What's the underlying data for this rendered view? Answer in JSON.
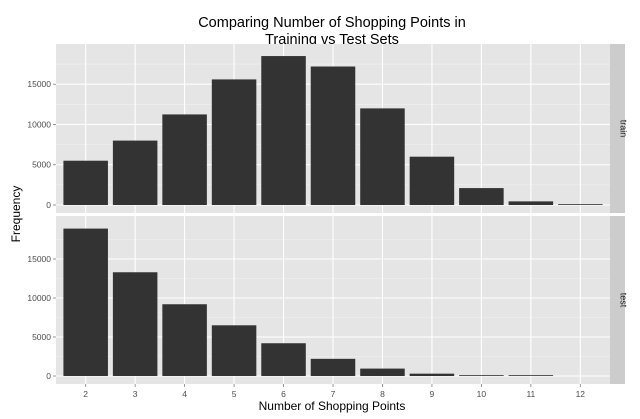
{
  "chart_data": {
    "type": "bar",
    "title_line1": "Comparing Number of Shopping Points in",
    "title_line2": "Training vs Test Sets",
    "xlabel": "Number of Shopping Points",
    "ylabel": "Frequency",
    "categories": [
      "2",
      "3",
      "4",
      "5",
      "6",
      "7",
      "8",
      "9",
      "10",
      "11",
      "12"
    ],
    "panels": [
      {
        "strip_label": "train",
        "values": [
          5500,
          8000,
          11250,
          15600,
          18500,
          17200,
          12000,
          6000,
          2100,
          450,
          80
        ],
        "ylim": [
          0,
          19500
        ],
        "yticks": [
          0,
          5000,
          10000,
          15000
        ],
        "ytick_labels": [
          "0",
          "5000",
          "10000",
          "15000"
        ]
      },
      {
        "strip_label": "test",
        "values": [
          18900,
          13300,
          9200,
          6500,
          4200,
          2200,
          950,
          300,
          80,
          5,
          0
        ],
        "ylim": [
          0,
          20000
        ],
        "yticks": [
          0,
          5000,
          10000,
          15000
        ],
        "ytick_labels": [
          "0",
          "5000",
          "10000",
          "15000"
        ]
      }
    ],
    "grid": true,
    "bar_color": "#333333",
    "panel_background": "#e5e5e5",
    "strip_background": "#cccccc"
  }
}
